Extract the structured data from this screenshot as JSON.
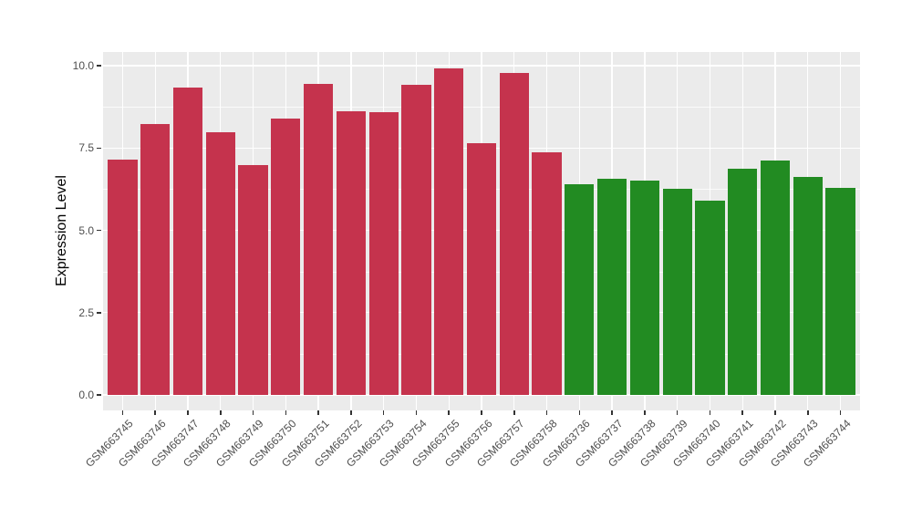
{
  "style": {
    "background": "#FFFFFF",
    "panel_background": "#EBEBEB",
    "grid_color": "#FFFFFF",
    "tick_color": "#333333",
    "axis_text_color": "#4D4D4D",
    "axis_title_color": "#000000",
    "red_bar_color": "#C5334D",
    "green_bar_color": "#228B22"
  },
  "chart_data": {
    "type": "bar",
    "title": "",
    "xlabel": "",
    "ylabel": "Expression Level",
    "ylim": [
      0,
      10.45
    ],
    "yticks": [
      0,
      2.5,
      5,
      7.5,
      10
    ],
    "ytick_labels": [
      "0.0",
      "2.5",
      "5.0",
      "7.5",
      "10.0"
    ],
    "minor_yticks": [
      1.25,
      3.75,
      6.25,
      8.75
    ],
    "grid": "major and minor horizontal white, major vertical white at each category",
    "legend": "none",
    "bar_width_fraction": 0.9,
    "categories": [
      "GSM663745",
      "GSM663746",
      "GSM663747",
      "GSM663748",
      "GSM663749",
      "GSM663750",
      "GSM663751",
      "GSM663752",
      "GSM663753",
      "GSM663754",
      "GSM663755",
      "GSM663756",
      "GSM663757",
      "GSM663758",
      "GSM663736",
      "GSM663737",
      "GSM663738",
      "GSM663739",
      "GSM663740",
      "GSM663741",
      "GSM663742",
      "GSM663743",
      "GSM663744"
    ],
    "values": [
      7.15,
      8.22,
      9.34,
      7.98,
      6.98,
      8.4,
      9.45,
      8.62,
      8.6,
      9.43,
      9.93,
      7.64,
      9.79,
      7.37,
      6.39,
      6.57,
      6.51,
      6.26,
      5.9,
      6.88,
      7.13,
      6.61,
      6.3
    ],
    "colors": [
      "#C5334D",
      "#C5334D",
      "#C5334D",
      "#C5334D",
      "#C5334D",
      "#C5334D",
      "#C5334D",
      "#C5334D",
      "#C5334D",
      "#C5334D",
      "#C5334D",
      "#C5334D",
      "#C5334D",
      "#C5334D",
      "#228B22",
      "#228B22",
      "#228B22",
      "#228B22",
      "#228B22",
      "#228B22",
      "#228B22",
      "#228B22",
      "#228B22"
    ]
  }
}
